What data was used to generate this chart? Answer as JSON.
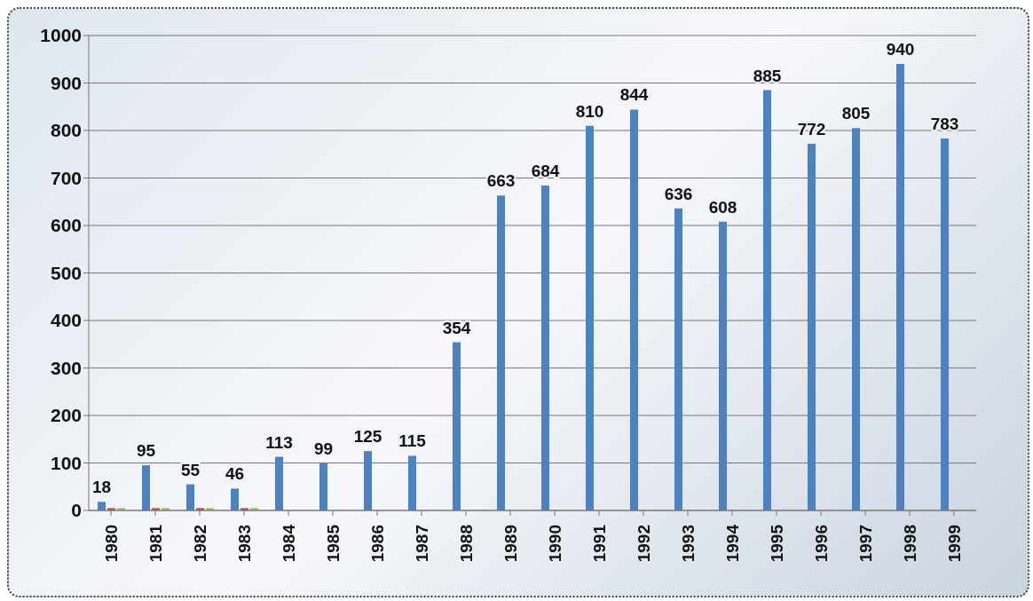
{
  "chart_data": {
    "type": "bar",
    "categories": [
      "1980",
      "1981",
      "1982",
      "1983",
      "1984",
      "1985",
      "1986",
      "1987",
      "1988",
      "1989",
      "1990",
      "1991",
      "1992",
      "1993",
      "1994",
      "1995",
      "1996",
      "1997",
      "1998",
      "1999"
    ],
    "series": [
      {
        "color": "#4f81bd",
        "values": [
          18,
          95,
          55,
          46,
          113,
          99,
          125,
          115,
          354,
          663,
          684,
          810,
          844,
          636,
          608,
          885,
          772,
          805,
          940,
          783
        ],
        "value_labels": [
          "18",
          "95",
          "55",
          "46",
          "113",
          "99",
          "125",
          "115",
          "354",
          "663",
          "684",
          "810",
          "844",
          "636",
          "608",
          "885",
          "772",
          "805",
          "940",
          "783"
        ]
      },
      {
        "color": "#c0504d",
        "values": [
          5,
          5,
          5,
          5,
          null,
          null,
          null,
          null,
          null,
          null,
          null,
          null,
          null,
          null,
          null,
          null,
          null,
          null,
          null,
          null
        ]
      },
      {
        "color": "#9bbb59",
        "values": [
          5,
          5,
          5,
          5,
          null,
          null,
          null,
          null,
          null,
          null,
          null,
          null,
          null,
          null,
          null,
          null,
          null,
          null,
          null,
          null
        ]
      }
    ],
    "ylim": [
      0,
      1000
    ],
    "yticks": [
      0,
      100,
      200,
      300,
      400,
      500,
      600,
      700,
      800,
      900,
      1000
    ],
    "grid": "y",
    "legend": false
  }
}
